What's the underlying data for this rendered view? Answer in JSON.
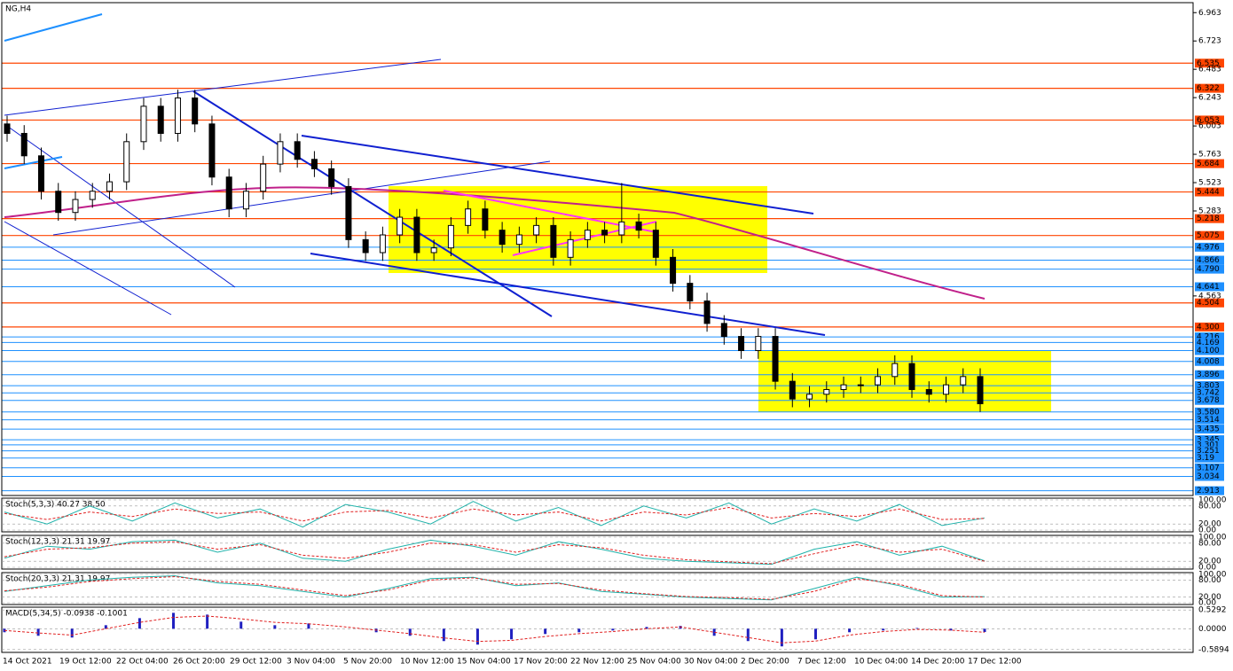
{
  "chart_data": {
    "type": "candlestick",
    "title": "NG,H4",
    "ylim": [
      2.88,
      7.04
    ],
    "yticks": [
      6.963,
      6.723,
      6.483,
      6.243,
      6.003,
      5.763,
      5.523,
      5.283,
      4.563
    ],
    "categories": [
      "14 Oct 2021",
      "19 Oct 12:00",
      "22 Oct 04:00",
      "26 Oct 20:00",
      "29 Oct 12:00",
      "3 Nov 04:00",
      "5 Nov 20:00",
      "10 Nov 12:00",
      "15 Nov 04:00",
      "17 Nov 20:00",
      "22 Nov 12:00",
      "25 Nov 04:00",
      "30 Nov 04:00",
      "2 Dec 20:00",
      "7 Dec 12:00",
      "10 Dec 04:00",
      "14 Dec 20:00",
      "17 Dec 12:00"
    ],
    "open": [
      6.02,
      5.94,
      5.75,
      5.45,
      5.27,
      5.38,
      5.45,
      5.53,
      5.87,
      6.17,
      5.94,
      6.24,
      6.02,
      5.57,
      5.3,
      5.45,
      5.68,
      5.87,
      5.72,
      5.64,
      5.49,
      5.04,
      4.93,
      5.08,
      5.23,
      4.93,
      4.97,
      5.16,
      5.3,
      5.12,
      5.0,
      5.08,
      5.16,
      4.89,
      5.04,
      5.12,
      5.08,
      5.19,
      5.12,
      4.89,
      4.67,
      4.52,
      4.33,
      4.22,
      4.1,
      4.22,
      3.84,
      3.69,
      3.73,
      3.77,
      3.81,
      3.81,
      3.88,
      3.99,
      3.77,
      3.73,
      3.81,
      3.88
    ],
    "high": [
      6.09,
      6.01,
      5.82,
      5.52,
      5.45,
      5.52,
      5.6,
      5.94,
      6.24,
      6.24,
      6.31,
      6.31,
      6.09,
      5.64,
      5.52,
      5.75,
      5.94,
      5.94,
      5.79,
      5.71,
      5.56,
      5.11,
      5.15,
      5.3,
      5.3,
      5.04,
      5.23,
      5.37,
      5.37,
      5.19,
      5.15,
      5.23,
      5.23,
      5.11,
      5.19,
      5.19,
      5.52,
      5.26,
      5.19,
      4.96,
      4.74,
      4.59,
      4.4,
      4.29,
      4.29,
      4.29,
      3.91,
      3.8,
      3.84,
      3.88,
      3.88,
      3.95,
      4.06,
      4.06,
      3.84,
      3.88,
      3.95,
      3.95
    ],
    "low": [
      5.87,
      5.68,
      5.38,
      5.2,
      5.2,
      5.31,
      5.38,
      5.46,
      5.8,
      5.87,
      5.87,
      5.95,
      5.5,
      5.23,
      5.23,
      5.38,
      5.61,
      5.65,
      5.57,
      5.42,
      4.97,
      4.86,
      4.86,
      5.01,
      4.86,
      4.86,
      4.9,
      5.09,
      5.05,
      4.93,
      4.93,
      5.01,
      4.82,
      4.82,
      4.97,
      5.01,
      5.01,
      5.05,
      4.82,
      4.6,
      4.45,
      4.26,
      4.15,
      4.03,
      4.03,
      3.77,
      3.62,
      3.62,
      3.66,
      3.7,
      3.74,
      3.74,
      3.81,
      3.7,
      3.66,
      3.66,
      3.74,
      3.58
    ],
    "close": [
      5.94,
      5.75,
      5.45,
      5.27,
      5.38,
      5.45,
      5.53,
      5.87,
      6.17,
      5.94,
      6.24,
      6.02,
      5.57,
      5.3,
      5.45,
      5.68,
      5.87,
      5.72,
      5.64,
      5.49,
      5.04,
      4.93,
      5.08,
      5.23,
      4.93,
      4.97,
      5.16,
      5.3,
      5.12,
      5.0,
      5.08,
      5.16,
      4.89,
      5.04,
      5.12,
      5.08,
      5.19,
      5.12,
      4.89,
      4.67,
      4.52,
      4.33,
      4.22,
      4.1,
      4.22,
      3.84,
      3.69,
      3.73,
      3.77,
      3.81,
      3.81,
      3.88,
      3.99,
      3.77,
      3.73,
      3.81,
      3.88,
      3.65
    ],
    "resistance_color": "#ff4500",
    "resistance_levels": [
      6.535,
      6.322,
      6.053,
      5.684,
      5.444,
      5.218,
      5.075,
      4.504,
      {
        "value": 4.3,
        "label": "4.300"
      }
    ],
    "support_color": "#1e90ff",
    "support_levels": [
      4.976,
      4.866,
      {
        "value": 4.79,
        "label": "4.790"
      },
      4.641,
      4.216,
      4.169,
      {
        "value": 4.1,
        "label": "4.100"
      },
      4.008,
      3.896,
      3.803,
      3.742,
      3.678,
      {
        "value": 3.58,
        "label": "3.580"
      },
      3.514,
      3.435,
      3.345,
      3.301,
      3.251,
      3.19,
      3.107,
      3.034,
      2.913
    ],
    "indicators": [
      {
        "label": "Stoch(5,3,3) 40.27 38.50",
        "ylim": [
          0,
          100
        ],
        "yticks": [
          {
            "value": 100,
            "label": "100.00"
          },
          {
            "value": 80,
            "label": "80.00"
          },
          {
            "value": 20,
            "label": "20.00"
          },
          {
            "value": 0,
            "label": "0.00"
          }
        ],
        "main": [
          60,
          20,
          80,
          30,
          90,
          40,
          70,
          10,
          85,
          60,
          20,
          95,
          30,
          75,
          15,
          80,
          40,
          90,
          20,
          70,
          30,
          85,
          15,
          40.27
        ],
        "signal": [
          55,
          35,
          60,
          45,
          70,
          55,
          60,
          30,
          60,
          65,
          40,
          70,
          50,
          60,
          30,
          60,
          50,
          75,
          40,
          55,
          45,
          70,
          35,
          38.5
        ]
      },
      {
        "label": "Stoch(12,3,3) 21.31 19.97",
        "ylim": [
          0,
          100
        ],
        "yticks": [
          {
            "value": 100,
            "label": "100.00"
          },
          {
            "value": 80,
            "label": "80.00"
          },
          {
            "value": 20,
            "label": "20.00"
          },
          {
            "value": 0,
            "label": "0.00"
          }
        ],
        "main": [
          30,
          70,
          60,
          85,
          90,
          50,
          80,
          30,
          20,
          60,
          90,
          70,
          40,
          85,
          60,
          30,
          20,
          15,
          10,
          60,
          85,
          40,
          70,
          21.31
        ],
        "signal": [
          35,
          60,
          65,
          80,
          85,
          60,
          75,
          40,
          30,
          50,
          80,
          75,
          50,
          75,
          65,
          40,
          25,
          18,
          12,
          45,
          75,
          50,
          60,
          19.97
        ]
      },
      {
        "label": "Stoch(20,3,3) 21.31 19.97",
        "ylim": [
          0,
          100
        ],
        "yticks": [
          {
            "value": 100,
            "label": "100.00"
          },
          {
            "value": 80,
            "label": "80.00"
          },
          {
            "value": 20,
            "label": "20.00"
          },
          {
            "value": 0,
            "label": "0.00"
          }
        ],
        "main": [
          40,
          60,
          80,
          90,
          95,
          70,
          60,
          40,
          20,
          50,
          85,
          90,
          60,
          70,
          40,
          30,
          20,
          15,
          10,
          50,
          90,
          60,
          20,
          21.31
        ],
        "signal": [
          42,
          55,
          75,
          85,
          92,
          75,
          65,
          45,
          25,
          45,
          80,
          88,
          65,
          68,
          45,
          32,
          22,
          18,
          12,
          40,
          85,
          65,
          25,
          19.97
        ]
      },
      {
        "label": "MACD(5,34,5) -0.0938 -0.1001",
        "ylim": [
          -0.62,
          0.56
        ],
        "yticks": [
          0.5292,
          {
            "value": 0,
            "label": "0.0000"
          },
          -0.5894
        ],
        "histogram": [
          -0.1,
          -0.2,
          -0.25,
          0.1,
          0.3,
          0.45,
          0.4,
          0.2,
          0.1,
          0.15,
          0,
          -0.1,
          -0.2,
          -0.35,
          -0.45,
          -0.3,
          -0.15,
          -0.1,
          -0.05,
          0.05,
          0.08,
          -0.2,
          -0.35,
          -0.5,
          -0.3,
          -0.1,
          -0.05,
          0.02,
          -0.05,
          -0.0938
        ],
        "signal": [
          -0.05,
          -0.12,
          -0.18,
          0,
          0.18,
          0.32,
          0.36,
          0.28,
          0.18,
          0.14,
          0.06,
          -0.04,
          -0.14,
          -0.26,
          -0.36,
          -0.33,
          -0.22,
          -0.14,
          -0.08,
          0,
          0.05,
          -0.1,
          -0.25,
          -0.4,
          -0.35,
          -0.18,
          -0.08,
          -0.02,
          -0.04,
          -0.1001
        ]
      }
    ]
  }
}
